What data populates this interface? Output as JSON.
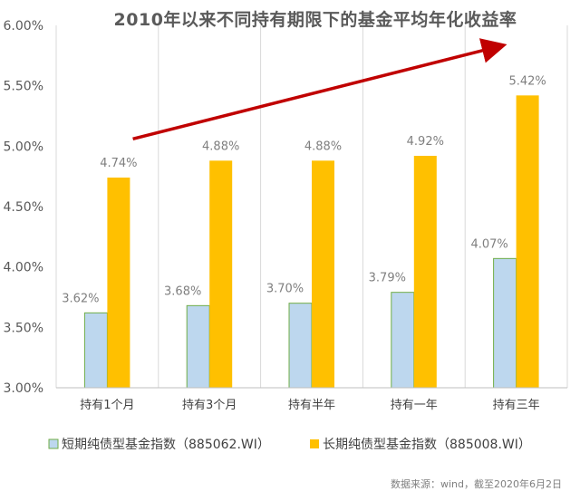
{
  "chart_data": {
    "type": "bar",
    "title": "2010年以来不同持有期限下的基金平均年化收益率",
    "categories": [
      "持有1个月",
      "持有3个月",
      "持有半年",
      "持有一年",
      "持有三年"
    ],
    "series": [
      {
        "name": "短期纯债型基金指数（885062.WI）",
        "values": [
          3.62,
          3.68,
          3.7,
          3.79,
          4.07
        ],
        "labels": [
          "3.62%",
          "3.68%",
          "3.70%",
          "3.79%",
          "4.07%"
        ],
        "color": "#bdd7ee",
        "stroke": "#70ad47"
      },
      {
        "name": "长期纯债型基金指数（885008.WI）",
        "values": [
          4.74,
          4.88,
          4.88,
          4.92,
          5.42
        ],
        "labels": [
          "4.74%",
          "4.88%",
          "4.88%",
          "4.92%",
          "5.42%"
        ],
        "color": "#ffc000",
        "stroke": "#ffc000"
      }
    ],
    "ylim": [
      3.0,
      6.0
    ],
    "yticks": [
      3.0,
      3.5,
      4.0,
      4.5,
      5.0,
      5.5,
      6.0
    ],
    "ytick_labels": [
      "3.00%",
      "3.50%",
      "4.00%",
      "4.50%",
      "5.00%",
      "5.50%",
      "6.00%"
    ],
    "grid": "vertical",
    "legend_position": "bottom",
    "annotation": {
      "type": "trend-arrow",
      "color": "#c00000",
      "from": {
        "category": "持有1个月",
        "value": 5.06
      },
      "to": {
        "category": "持有三年",
        "value": 5.83
      }
    }
  },
  "footer": {
    "source": "数据来源：wind，截至2020年6月2日"
  }
}
